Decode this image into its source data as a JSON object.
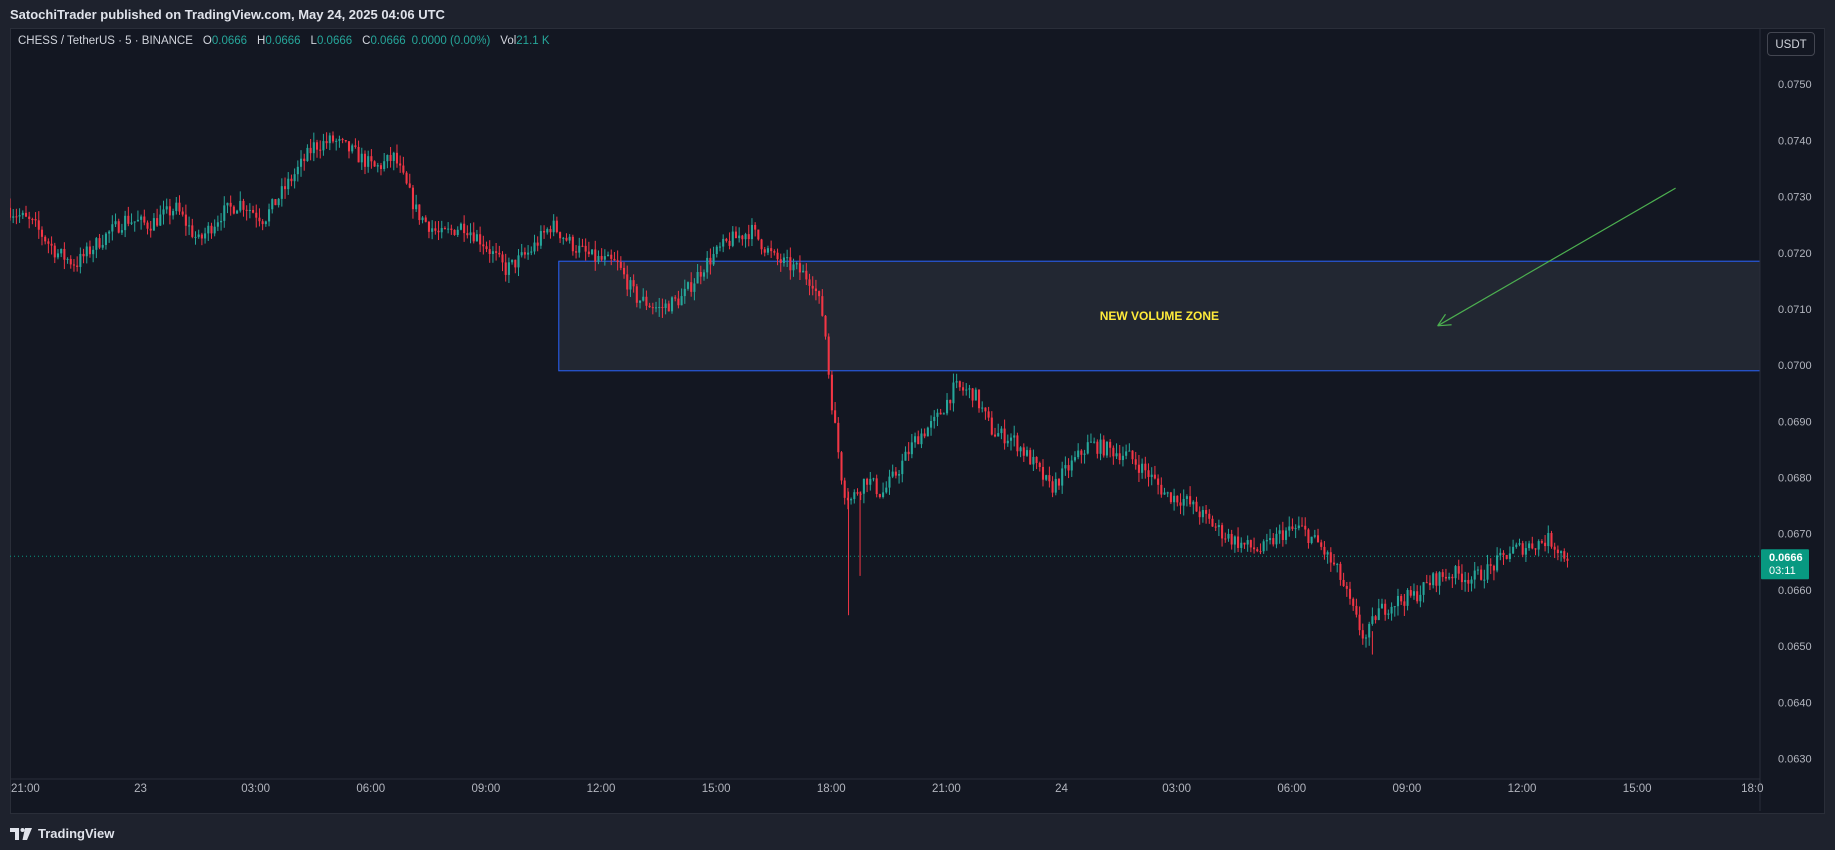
{
  "header": {
    "publisher_line": "SatochiTrader published on TradingView.com, May 24, 2025 04:06 UTC"
  },
  "legend": {
    "symbol": "CHESS / TetherUS · 5 · BINANCE",
    "open_label": "O",
    "open_value": "0.0666",
    "high_label": "H",
    "high_value": "0.0666",
    "low_label": "L",
    "low_value": "0.0666",
    "close_label": "C",
    "close_value": "0.0666",
    "change": "0.0000 (0.00%)",
    "vol_label": "Vol",
    "vol_value": "21.1 K"
  },
  "currency_button": "USDT",
  "footer": {
    "brand": "TradingView"
  },
  "colors": {
    "up": "#26a69a",
    "down": "#f23645",
    "zone_border": "#2962ff",
    "zone_label": "#ffeb3b",
    "arrow": "#4caf50",
    "price_badge": "#089981"
  },
  "chart_data": {
    "type": "candlestick",
    "ylim": [
      0.0626,
      0.076
    ],
    "y_ticks": [
      "0.0750",
      "0.0740",
      "0.0730",
      "0.0720",
      "0.0710",
      "0.0700",
      "0.0690",
      "0.0680",
      "0.0670",
      "0.0660",
      "0.0650",
      "0.0640",
      "0.0630"
    ],
    "x_ticks": [
      "21:00",
      "23",
      "03:00",
      "06:00",
      "09:00",
      "12:00",
      "15:00",
      "18:00",
      "21:00",
      "24",
      "03:00",
      "06:00",
      "09:00",
      "12:00",
      "15:00",
      "18:0"
    ],
    "x_tick_hours": [
      0,
      3,
      6,
      9,
      12,
      15,
      18,
      21,
      24,
      27,
      30,
      33,
      36,
      39,
      42,
      45
    ],
    "x_start_hour": -0.4,
    "x_end_hour": 45.2,
    "last_price": {
      "value": 0.0666,
      "label": "0.0666",
      "countdown": "03:11"
    },
    "zone": {
      "label": "NEW VOLUME ZONE",
      "price_top": 0.07185,
      "price_bottom": 0.0699,
      "start_hour": 13.9,
      "end_hour": 45.2
    },
    "arrow": {
      "from": {
        "hour": 43.0,
        "price": 0.07315
      },
      "to": {
        "hour": 36.8,
        "price": 0.0707
      }
    },
    "series_anchors": [
      [
        -0.4,
        0.0728
      ],
      [
        0.3,
        0.0725
      ],
      [
        0.9,
        0.072
      ],
      [
        1.4,
        0.0718
      ],
      [
        2.0,
        0.0722
      ],
      [
        2.7,
        0.0726
      ],
      [
        3.3,
        0.0725
      ],
      [
        4.0,
        0.0728
      ],
      [
        4.6,
        0.0722
      ],
      [
        5.2,
        0.0727
      ],
      [
        5.7,
        0.0729
      ],
      [
        6.3,
        0.0726
      ],
      [
        7.0,
        0.0733
      ],
      [
        7.6,
        0.0739
      ],
      [
        8.1,
        0.074
      ],
      [
        8.6,
        0.0738
      ],
      [
        9.2,
        0.0735
      ],
      [
        9.7,
        0.0737
      ],
      [
        10.3,
        0.0727
      ],
      [
        10.9,
        0.0723
      ],
      [
        11.5,
        0.0725
      ],
      [
        12.0,
        0.0722
      ],
      [
        12.6,
        0.0717
      ],
      [
        13.2,
        0.072
      ],
      [
        13.8,
        0.0725
      ],
      [
        14.4,
        0.0721
      ],
      [
        14.9,
        0.0719
      ],
      [
        15.5,
        0.0718
      ],
      [
        16.0,
        0.0712
      ],
      [
        16.6,
        0.071
      ],
      [
        17.2,
        0.0712
      ],
      [
        17.8,
        0.0718
      ],
      [
        18.4,
        0.0722
      ],
      [
        19.0,
        0.0724
      ],
      [
        19.6,
        0.0719
      ],
      [
        20.2,
        0.0717
      ],
      [
        20.6,
        0.0715
      ],
      [
        20.9,
        0.0708
      ],
      [
        21.05,
        0.0696
      ],
      [
        21.2,
        0.0688
      ],
      [
        21.4,
        0.0678
      ],
      [
        21.6,
        0.0676
      ],
      [
        22.0,
        0.068
      ],
      [
        22.4,
        0.0677
      ],
      [
        22.8,
        0.0681
      ],
      [
        23.3,
        0.0687
      ],
      [
        23.8,
        0.069
      ],
      [
        24.3,
        0.0696
      ],
      [
        24.8,
        0.0695
      ],
      [
        25.3,
        0.0688
      ],
      [
        25.8,
        0.0687
      ],
      [
        26.3,
        0.0683
      ],
      [
        26.8,
        0.0678
      ],
      [
        27.3,
        0.0682
      ],
      [
        27.8,
        0.0686
      ],
      [
        28.3,
        0.0685
      ],
      [
        28.8,
        0.0684
      ],
      [
        29.3,
        0.0681
      ],
      [
        29.8,
        0.0677
      ],
      [
        30.3,
        0.0676
      ],
      [
        30.8,
        0.0673
      ],
      [
        31.3,
        0.067
      ],
      [
        31.8,
        0.0668
      ],
      [
        32.3,
        0.0667
      ],
      [
        32.8,
        0.067
      ],
      [
        33.3,
        0.0671
      ],
      [
        33.8,
        0.0668
      ],
      [
        34.3,
        0.0663
      ],
      [
        34.8,
        0.0654
      ],
      [
        35.0,
        0.0651
      ],
      [
        35.3,
        0.0656
      ],
      [
        35.8,
        0.0658
      ],
      [
        36.3,
        0.0659
      ],
      [
        36.8,
        0.0662
      ],
      [
        37.3,
        0.0663
      ],
      [
        37.8,
        0.0662
      ],
      [
        38.3,
        0.0664
      ],
      [
        38.8,
        0.0667
      ],
      [
        39.3,
        0.0668
      ],
      [
        39.8,
        0.0669
      ],
      [
        40.2,
        0.0666
      ]
    ],
    "spike_lows": [
      [
        21.45,
        0.06555
      ],
      [
        21.75,
        0.06625
      ],
      [
        35.1,
        0.06485
      ]
    ]
  }
}
